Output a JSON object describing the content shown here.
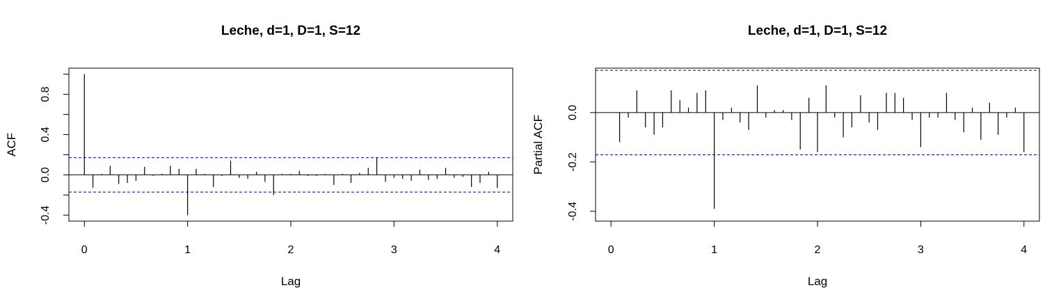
{
  "chart_data": [
    {
      "type": "bar",
      "title": "Leche, d=1, D=1, S=12",
      "xlabel": "Lag",
      "ylabel": "ACF",
      "xlim": [
        -0.15,
        4.15
      ],
      "ylim": [
        -0.46,
        1.06
      ],
      "xticks": [
        "0",
        "1",
        "2",
        "3",
        "4"
      ],
      "yticks": [
        "-0.4",
        "0.0",
        "0.4",
        "0.8"
      ],
      "confidence_limit": 0.171,
      "lag_step": 0.0833,
      "x": [
        0,
        0.083,
        0.167,
        0.25,
        0.333,
        0.417,
        0.5,
        0.583,
        0.667,
        0.75,
        0.833,
        0.917,
        1,
        1.083,
        1.167,
        1.25,
        1.333,
        1.417,
        1.5,
        1.583,
        1.667,
        1.75,
        1.833,
        1.917,
        2,
        2.083,
        2.167,
        2.25,
        2.333,
        2.417,
        2.5,
        2.583,
        2.667,
        2.75,
        2.833,
        2.917,
        3,
        3.083,
        3.167,
        3.25,
        3.333,
        3.417,
        3.5,
        3.583,
        3.667,
        3.75,
        3.833,
        3.917,
        4
      ],
      "values": [
        1.0,
        -0.13,
        0.01,
        0.09,
        -0.09,
        -0.08,
        -0.06,
        0.08,
        -0.01,
        0.01,
        0.09,
        0.06,
        -0.4,
        0.06,
        0.01,
        -0.12,
        -0.01,
        0.14,
        -0.03,
        -0.04,
        0.03,
        -0.07,
        -0.2,
        0.01,
        0.01,
        0.04,
        -0.01,
        -0.01,
        0.01,
        -0.1,
        0.01,
        -0.08,
        0.02,
        0.07,
        0.17,
        -0.07,
        -0.03,
        -0.04,
        -0.06,
        0.05,
        -0.05,
        -0.04,
        0.07,
        -0.03,
        -0.02,
        -0.12,
        -0.08,
        0.03,
        -0.13
      ]
    },
    {
      "type": "bar",
      "title": "Leche, d=1, D=1, S=12",
      "xlabel": "Lag",
      "ylabel": "Partial ACF",
      "xlim": [
        -0.15,
        4.15
      ],
      "ylim": [
        -0.44,
        0.18
      ],
      "xticks": [
        "0",
        "1",
        "2",
        "3",
        "4"
      ],
      "yticks": [
        "-0.4",
        "-0.2",
        "0.0"
      ],
      "confidence_limit": 0.171,
      "lag_step": 0.0833,
      "x": [
        0.083,
        0.167,
        0.25,
        0.333,
        0.417,
        0.5,
        0.583,
        0.667,
        0.75,
        0.833,
        0.917,
        1,
        1.083,
        1.167,
        1.25,
        1.333,
        1.417,
        1.5,
        1.583,
        1.667,
        1.75,
        1.833,
        1.917,
        2,
        2.083,
        2.167,
        2.25,
        2.333,
        2.417,
        2.5,
        2.583,
        2.667,
        2.75,
        2.833,
        2.917,
        3,
        3.083,
        3.167,
        3.25,
        3.333,
        3.417,
        3.5,
        3.583,
        3.667,
        3.75,
        3.833,
        3.917,
        4
      ],
      "values": [
        -0.12,
        -0.02,
        0.09,
        -0.06,
        -0.09,
        -0.06,
        0.09,
        0.05,
        0.02,
        0.08,
        0.09,
        -0.39,
        -0.03,
        0.02,
        -0.04,
        -0.07,
        0.11,
        -0.02,
        0.01,
        0.01,
        -0.03,
        -0.15,
        0.06,
        -0.16,
        0.11,
        -0.02,
        -0.1,
        -0.06,
        0.07,
        -0.04,
        -0.07,
        0.08,
        0.08,
        0.06,
        -0.03,
        -0.14,
        -0.02,
        -0.02,
        0.08,
        -0.03,
        -0.08,
        0.02,
        -0.11,
        0.04,
        -0.09,
        -0.02,
        0.02,
        -0.16
      ]
    }
  ]
}
